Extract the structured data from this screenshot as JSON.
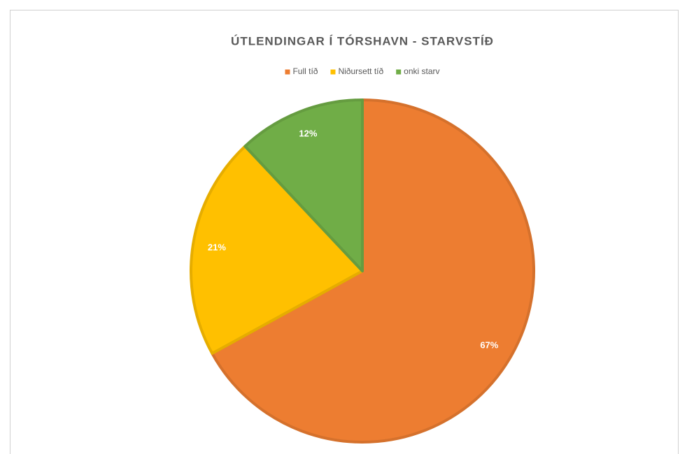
{
  "chart_data": {
    "type": "pie",
    "title": "ÚTLENDINGAR Í TÓRSHAVN - STARVSTÍÐ",
    "categories": [
      "Full tíð",
      "Niðursett tíð",
      "onki starv"
    ],
    "values": [
      67,
      21,
      12
    ],
    "value_labels": [
      "67%",
      "21%",
      "12%"
    ],
    "colors": [
      "#ED7D31",
      "#FFC000",
      "#70AD47"
    ],
    "legend": "top"
  }
}
